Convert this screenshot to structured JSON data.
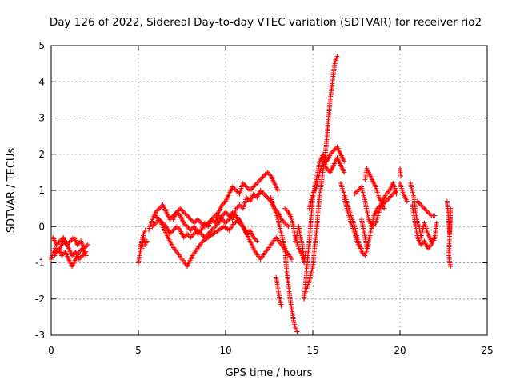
{
  "chart_data": {
    "type": "scatter",
    "title": "Day 126 of 2022, Sidereal Day-to-day VTEC variation (SDTVAR) for receiver rio2",
    "xlabel": "GPS time / hours",
    "ylabel": "SDTVAR / TECUs",
    "xlim": [
      0,
      25
    ],
    "ylim": [
      -3,
      5
    ],
    "xticks": [
      0,
      5,
      10,
      15,
      20,
      25
    ],
    "yticks": [
      -3,
      -2,
      -1,
      0,
      1,
      2,
      3,
      4,
      5
    ],
    "grid": true,
    "marker": "+",
    "marker_color": "#ff0000",
    "tracks": [
      [
        [
          0.0,
          -0.9
        ],
        [
          0.2,
          -0.6
        ],
        [
          0.4,
          -0.7
        ],
        [
          0.6,
          -0.5
        ],
        [
          0.8,
          -0.4
        ],
        [
          1.0,
          -0.6
        ],
        [
          1.2,
          -0.8
        ],
        [
          1.4,
          -0.7
        ],
        [
          1.6,
          -0.9
        ],
        [
          1.8,
          -0.8
        ],
        [
          2.0,
          -0.7
        ]
      ],
      [
        [
          0.1,
          -0.3
        ],
        [
          0.3,
          -0.5
        ],
        [
          0.5,
          -0.4
        ],
        [
          0.7,
          -0.3
        ],
        [
          0.9,
          -0.5
        ],
        [
          1.1,
          -0.4
        ],
        [
          1.3,
          -0.3
        ],
        [
          1.5,
          -0.5
        ],
        [
          1.7,
          -0.4
        ],
        [
          1.9,
          -0.6
        ],
        [
          2.1,
          -0.5
        ]
      ],
      [
        [
          0.2,
          -0.8
        ],
        [
          0.4,
          -0.6
        ],
        [
          0.6,
          -0.8
        ],
        [
          0.8,
          -0.7
        ],
        [
          1.0,
          -0.9
        ],
        [
          1.2,
          -1.1
        ],
        [
          1.4,
          -0.9
        ],
        [
          1.6,
          -0.7
        ],
        [
          1.8,
          -0.6
        ],
        [
          2.0,
          -0.8
        ]
      ],
      [
        [
          5.0,
          -1.0
        ],
        [
          5.1,
          -0.7
        ],
        [
          5.2,
          -0.4
        ],
        [
          5.3,
          -0.2
        ],
        [
          5.4,
          -0.1
        ]
      ],
      [
        [
          5.1,
          -0.5
        ],
        [
          5.2,
          -0.6
        ],
        [
          5.3,
          -0.3
        ],
        [
          5.4,
          -0.5
        ],
        [
          5.5,
          -0.4
        ]
      ],
      [
        [
          5.6,
          -0.1
        ],
        [
          5.8,
          0.2
        ],
        [
          6.0,
          0.4
        ],
        [
          6.2,
          0.5
        ],
        [
          6.4,
          0.6
        ],
        [
          6.6,
          0.4
        ],
        [
          6.8,
          0.2
        ],
        [
          7.0,
          0.3
        ],
        [
          7.2,
          0.4
        ],
        [
          7.4,
          0.5
        ],
        [
          7.6,
          0.4
        ],
        [
          7.8,
          0.3
        ],
        [
          8.0,
          0.2
        ],
        [
          8.2,
          0.1
        ],
        [
          8.4,
          0.2
        ],
        [
          8.6,
          0.1
        ],
        [
          8.8,
          0.0
        ],
        [
          9.0,
          0.1
        ],
        [
          9.2,
          0.2
        ],
        [
          9.4,
          0.3
        ],
        [
          9.6,
          0.4
        ],
        [
          9.8,
          0.6
        ],
        [
          10.0,
          0.7
        ],
        [
          10.2,
          0.9
        ],
        [
          10.4,
          1.1
        ],
        [
          10.6,
          1.0
        ],
        [
          10.8,
          0.9
        ],
        [
          11.0,
          1.2
        ],
        [
          11.2,
          1.1
        ],
        [
          11.4,
          1.0
        ],
        [
          11.6,
          1.1
        ],
        [
          11.8,
          1.2
        ],
        [
          12.0,
          1.3
        ],
        [
          12.2,
          1.4
        ],
        [
          12.4,
          1.5
        ],
        [
          12.6,
          1.4
        ],
        [
          12.8,
          1.2
        ],
        [
          13.0,
          1.0
        ]
      ],
      [
        [
          5.8,
          0.0
        ],
        [
          6.0,
          0.1
        ],
        [
          6.2,
          0.2
        ],
        [
          6.4,
          0.1
        ],
        [
          6.6,
          0.0
        ],
        [
          6.8,
          -0.2
        ],
        [
          7.0,
          -0.1
        ],
        [
          7.2,
          0.0
        ],
        [
          7.4,
          -0.1
        ],
        [
          7.6,
          -0.3
        ],
        [
          7.8,
          -0.2
        ],
        [
          8.0,
          -0.3
        ],
        [
          8.2,
          -0.2
        ],
        [
          8.4,
          -0.1
        ],
        [
          8.6,
          -0.2
        ],
        [
          8.8,
          -0.3
        ],
        [
          9.0,
          -0.2
        ],
        [
          9.2,
          -0.1
        ],
        [
          9.4,
          0.0
        ],
        [
          9.6,
          0.1
        ],
        [
          9.8,
          0.3
        ],
        [
          10.0,
          0.4
        ],
        [
          10.2,
          0.3
        ],
        [
          10.4,
          0.2
        ],
        [
          10.6,
          0.5
        ],
        [
          10.8,
          0.6
        ],
        [
          11.0,
          0.5
        ],
        [
          11.2,
          0.8
        ],
        [
          11.4,
          0.7
        ],
        [
          11.6,
          0.9
        ],
        [
          11.8,
          0.8
        ],
        [
          12.0,
          1.0
        ],
        [
          12.2,
          0.9
        ],
        [
          12.4,
          0.8
        ],
        [
          12.6,
          0.7
        ],
        [
          12.8,
          0.5
        ],
        [
          13.0,
          0.4
        ],
        [
          13.2,
          0.2
        ],
        [
          13.4,
          0.1
        ],
        [
          13.6,
          0.0
        ]
      ],
      [
        [
          6.0,
          0.3
        ],
        [
          6.3,
          0.1
        ],
        [
          6.6,
          -0.2
        ],
        [
          6.9,
          -0.5
        ],
        [
          7.2,
          -0.7
        ],
        [
          7.5,
          -0.9
        ],
        [
          7.8,
          -1.1
        ],
        [
          8.1,
          -0.8
        ],
        [
          8.4,
          -0.6
        ],
        [
          8.7,
          -0.4
        ],
        [
          9.0,
          -0.3
        ],
        [
          9.3,
          -0.2
        ],
        [
          9.6,
          -0.1
        ],
        [
          9.9,
          0.0
        ],
        [
          10.2,
          -0.1
        ],
        [
          10.5,
          0.1
        ],
        [
          10.8,
          0.2
        ],
        [
          11.1,
          -0.1
        ],
        [
          11.4,
          -0.4
        ],
        [
          11.7,
          -0.7
        ],
        [
          12.0,
          -0.9
        ],
        [
          12.3,
          -0.7
        ],
        [
          12.6,
          -0.5
        ],
        [
          12.9,
          -0.3
        ],
        [
          13.2,
          -0.5
        ],
        [
          13.5,
          -0.7
        ],
        [
          13.8,
          -0.9
        ]
      ],
      [
        [
          7.0,
          0.2
        ],
        [
          7.2,
          0.4
        ],
        [
          7.4,
          0.3
        ],
        [
          7.6,
          0.1
        ],
        [
          7.8,
          0.0
        ],
        [
          8.0,
          -0.1
        ],
        [
          8.2,
          0.0
        ],
        [
          8.4,
          -0.2
        ],
        [
          8.6,
          -0.1
        ],
        [
          8.8,
          0.1
        ],
        [
          9.0,
          0.0
        ],
        [
          9.2,
          0.2
        ],
        [
          9.4,
          0.1
        ],
        [
          9.6,
          0.3
        ],
        [
          9.8,
          0.2
        ],
        [
          10.0,
          0.1
        ],
        [
          10.2,
          0.2
        ],
        [
          10.4,
          0.4
        ],
        [
          10.6,
          0.3
        ],
        [
          10.8,
          0.1
        ],
        [
          11.0,
          0.0
        ],
        [
          11.2,
          -0.2
        ],
        [
          11.4,
          -0.1
        ],
        [
          11.6,
          -0.3
        ],
        [
          11.8,
          -0.4
        ]
      ],
      [
        [
          12.6,
          0.8
        ],
        [
          12.8,
          0.5
        ],
        [
          13.0,
          0.2
        ],
        [
          13.2,
          -0.2
        ],
        [
          13.4,
          -0.6
        ],
        [
          13.5,
          -1.2
        ],
        [
          13.6,
          -1.6
        ],
        [
          13.7,
          -2.0
        ],
        [
          13.8,
          -2.3
        ],
        [
          13.9,
          -2.6
        ],
        [
          14.0,
          -2.8
        ],
        [
          14.1,
          -2.9
        ]
      ],
      [
        [
          12.9,
          -1.4
        ],
        [
          13.0,
          -1.7
        ],
        [
          13.1,
          -2.0
        ],
        [
          13.2,
          -2.2
        ]
      ],
      [
        [
          13.4,
          0.5
        ],
        [
          13.6,
          0.4
        ],
        [
          13.8,
          0.2
        ],
        [
          14.0,
          -0.3
        ],
        [
          14.2,
          -0.6
        ],
        [
          14.4,
          -0.8
        ],
        [
          14.5,
          -1.0
        ],
        [
          14.6,
          -0.7
        ]
      ],
      [
        [
          14.0,
          -0.4
        ],
        [
          14.1,
          -0.2
        ],
        [
          14.2,
          0.0
        ],
        [
          14.3,
          -0.3
        ],
        [
          14.4,
          -0.5
        ],
        [
          14.5,
          -0.9
        ]
      ],
      [
        [
          14.5,
          -2.0
        ],
        [
          14.6,
          -1.5
        ],
        [
          14.7,
          -0.9
        ],
        [
          14.8,
          -0.4
        ],
        [
          14.9,
          0.2
        ],
        [
          15.0,
          0.8
        ],
        [
          15.2,
          1.3
        ],
        [
          15.4,
          1.8
        ],
        [
          15.6,
          2.0
        ],
        [
          15.8,
          1.8
        ],
        [
          16.0,
          2.0
        ],
        [
          16.2,
          2.1
        ],
        [
          16.4,
          2.2
        ],
        [
          16.6,
          2.0
        ],
        [
          16.8,
          1.8
        ]
      ],
      [
        [
          14.6,
          -1.8
        ],
        [
          14.8,
          -1.5
        ],
        [
          15.0,
          -1.1
        ],
        [
          15.1,
          -0.6
        ],
        [
          15.2,
          -0.2
        ],
        [
          15.3,
          0.4
        ],
        [
          15.4,
          0.9
        ],
        [
          15.5,
          1.2
        ],
        [
          15.6,
          1.6
        ],
        [
          15.7,
          1.9
        ],
        [
          15.8,
          2.4
        ],
        [
          15.9,
          3.0
        ],
        [
          16.0,
          3.5
        ],
        [
          16.1,
          3.9
        ],
        [
          16.2,
          4.3
        ],
        [
          16.3,
          4.6
        ],
        [
          16.4,
          4.7
        ]
      ],
      [
        [
          14.8,
          0.5
        ],
        [
          15.0,
          0.9
        ],
        [
          15.2,
          1.1
        ],
        [
          15.4,
          1.5
        ],
        [
          15.6,
          1.8
        ],
        [
          15.8,
          1.6
        ],
        [
          16.0,
          1.5
        ],
        [
          16.2,
          1.7
        ],
        [
          16.4,
          1.9
        ],
        [
          16.6,
          1.7
        ],
        [
          16.8,
          1.5
        ]
      ],
      [
        [
          16.6,
          1.2
        ],
        [
          16.8,
          0.9
        ],
        [
          17.0,
          0.6
        ],
        [
          17.2,
          0.3
        ],
        [
          17.4,
          0.0
        ],
        [
          17.6,
          -0.4
        ],
        [
          17.8,
          -0.7
        ],
        [
          18.0,
          -0.8
        ],
        [
          18.2,
          -0.5
        ]
      ],
      [
        [
          16.8,
          0.8
        ],
        [
          17.0,
          0.4
        ],
        [
          17.2,
          0.1
        ],
        [
          17.4,
          -0.2
        ],
        [
          17.6,
          -0.5
        ],
        [
          17.8,
          -0.6
        ]
      ],
      [
        [
          17.4,
          0.9
        ],
        [
          17.6,
          1.0
        ],
        [
          17.8,
          1.1
        ],
        [
          18.0,
          0.7
        ],
        [
          18.2,
          0.2
        ],
        [
          18.4,
          0.0
        ],
        [
          18.6,
          0.1
        ],
        [
          18.8,
          0.4
        ],
        [
          19.0,
          0.7
        ],
        [
          19.2,
          0.9
        ],
        [
          19.4,
          1.0
        ],
        [
          19.6,
          1.2
        ],
        [
          19.8,
          0.9
        ]
      ],
      [
        [
          18.0,
          1.3
        ],
        [
          18.1,
          1.6
        ],
        [
          18.2,
          1.5
        ],
        [
          18.4,
          1.3
        ],
        [
          18.6,
          1.1
        ],
        [
          18.8,
          0.8
        ],
        [
          19.0,
          0.6
        ],
        [
          19.2,
          0.7
        ],
        [
          19.4,
          0.8
        ],
        [
          19.6,
          0.9
        ],
        [
          19.8,
          1.0
        ]
      ],
      [
        [
          17.8,
          0.2
        ],
        [
          18.0,
          -0.3
        ],
        [
          18.1,
          -0.6
        ],
        [
          18.3,
          -0.2
        ],
        [
          18.5,
          0.3
        ],
        [
          18.7,
          0.5
        ],
        [
          18.9,
          0.6
        ],
        [
          19.1,
          0.5
        ]
      ],
      [
        [
          20.0,
          1.6
        ],
        [
          20.05,
          1.4
        ]
      ],
      [
        [
          20.0,
          1.2
        ],
        [
          20.2,
          0.9
        ],
        [
          20.4,
          0.7
        ]
      ],
      [
        [
          20.6,
          1.2
        ],
        [
          20.7,
          1.0
        ],
        [
          20.8,
          0.8
        ],
        [
          20.9,
          0.4
        ],
        [
          21.0,
          0.1
        ],
        [
          21.1,
          0.0
        ],
        [
          21.2,
          -0.3
        ],
        [
          21.3,
          -0.1
        ],
        [
          21.4,
          0.1
        ],
        [
          21.6,
          -0.2
        ],
        [
          21.8,
          -0.4
        ],
        [
          22.0,
          -0.3
        ],
        [
          22.1,
          0.1
        ]
      ],
      [
        [
          20.7,
          0.6
        ],
        [
          20.8,
          0.3
        ],
        [
          20.9,
          0.0
        ],
        [
          21.0,
          -0.3
        ],
        [
          21.2,
          -0.5
        ],
        [
          21.4,
          -0.4
        ],
        [
          21.6,
          -0.6
        ],
        [
          21.8,
          -0.5
        ],
        [
          22.0,
          -0.3
        ]
      ],
      [
        [
          21.0,
          0.7
        ],
        [
          21.2,
          0.6
        ],
        [
          21.4,
          0.5
        ],
        [
          21.6,
          0.4
        ],
        [
          21.8,
          0.3
        ],
        [
          22.0,
          0.3
        ]
      ],
      [
        [
          22.7,
          0.7
        ],
        [
          22.75,
          0.4
        ],
        [
          22.8,
          0.1
        ],
        [
          22.85,
          -0.2
        ],
        [
          22.9,
          0.5
        ],
        [
          22.8,
          -0.8
        ],
        [
          22.85,
          -1.0
        ],
        [
          22.9,
          -1.1
        ]
      ]
    ]
  }
}
